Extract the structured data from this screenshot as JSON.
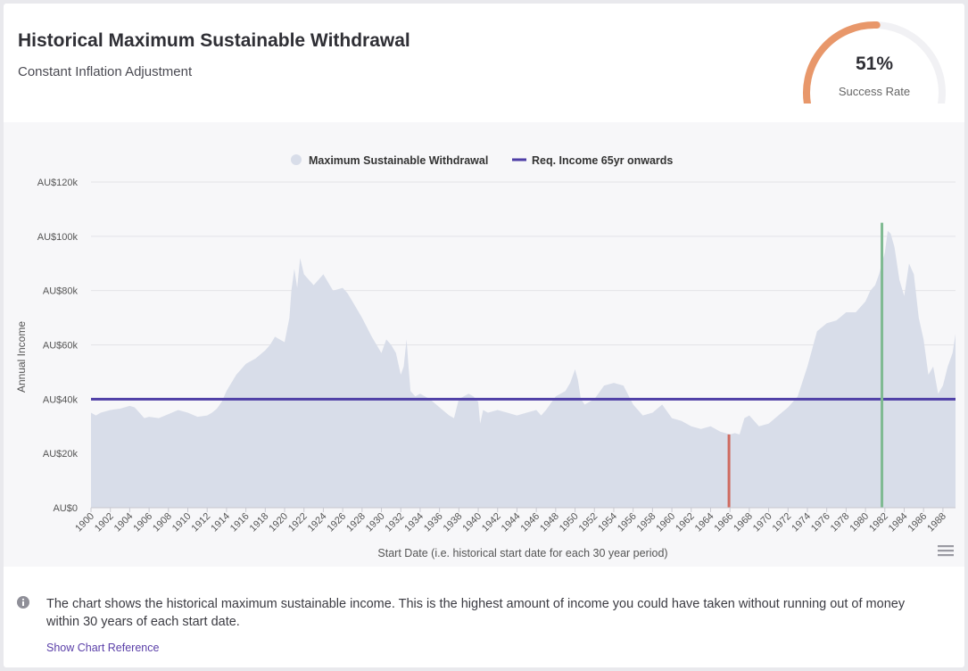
{
  "header": {
    "title": "Historical Maximum Sustainable Withdrawal",
    "subtitle": "Constant Inflation Adjustment"
  },
  "gauge": {
    "value_text": "51%",
    "label": "Success Rate",
    "fraction": 0.51,
    "color": "#e8976a",
    "track_color": "#f1f1f4"
  },
  "chart_data": {
    "type": "area",
    "legend": {
      "position": "top-center",
      "items": [
        "Maximum Sustainable Withdrawal",
        "Req. Income 65yr onwards"
      ]
    },
    "xlabel": "Start Date (i.e. historical start date for each 30 year period)",
    "ylabel": "Annual Income",
    "xlim": [
      1900,
      1989.3
    ],
    "ylim": [
      0,
      120000
    ],
    "y_ticks": [
      {
        "value": 0,
        "label": "AU$0"
      },
      {
        "value": 20000,
        "label": "AU$20k"
      },
      {
        "value": 40000,
        "label": "AU$40k"
      },
      {
        "value": 60000,
        "label": "AU$60k"
      },
      {
        "value": 80000,
        "label": "AU$80k"
      },
      {
        "value": 100000,
        "label": "AU$100k"
      },
      {
        "value": 120000,
        "label": "AU$120k"
      }
    ],
    "x_ticks": [
      "1900",
      "1902",
      "1904",
      "1906",
      "1908",
      "1910",
      "1912",
      "1914",
      "1916",
      "1918",
      "1920",
      "1922",
      "1924",
      "1926",
      "1928",
      "1930",
      "1932",
      "1934",
      "1936",
      "1938",
      "1940",
      "1942",
      "1944",
      "1946",
      "1948",
      "1950",
      "1952",
      "1954",
      "1956",
      "1958",
      "1960",
      "1962",
      "1964",
      "1966",
      "1968",
      "1970",
      "1972",
      "1974",
      "1976",
      "1978",
      "1980",
      "1982",
      "1984",
      "1986",
      "1988"
    ],
    "series": [
      {
        "name": "Maximum Sustainable Withdrawal",
        "color": "#d8dde9",
        "x": [
          1900,
          1900.5,
          1901,
          1902,
          1903,
          1904,
          1904.5,
          1905,
          1905.5,
          1906,
          1907,
          1908,
          1909,
          1910,
          1911,
          1912,
          1912.5,
          1913,
          1913.5,
          1914,
          1915,
          1916,
          1917,
          1918,
          1918.5,
          1919,
          1920,
          1920.5,
          1920.7,
          1921,
          1921.3,
          1921.6,
          1922,
          1922.5,
          1923,
          1923.5,
          1924,
          1925,
          1926,
          1926.5,
          1927,
          1928,
          1929,
          1930,
          1930.5,
          1931,
          1931.5,
          1932,
          1932.3,
          1932.6,
          1932.8,
          1933,
          1933.5,
          1934,
          1935,
          1936,
          1937,
          1937.5,
          1938,
          1939,
          1939.5,
          1940,
          1940.2,
          1940.5,
          1941,
          1942,
          1943,
          1944,
          1945,
          1946,
          1946.5,
          1947,
          1948,
          1949,
          1949.5,
          1950,
          1950.3,
          1950.6,
          1951,
          1952,
          1953,
          1954,
          1955,
          1956,
          1957,
          1958,
          1959,
          1960,
          1961,
          1962,
          1963,
          1964,
          1965,
          1966,
          1966.5,
          1967,
          1967.5,
          1968,
          1969,
          1970,
          1971,
          1972,
          1973,
          1974,
          1975,
          1976,
          1977,
          1978,
          1979,
          1980,
          1980.5,
          1981,
          1981.4,
          1981.7,
          1982,
          1982.3,
          1982.6,
          1983,
          1983.5,
          1984,
          1984.5,
          1985,
          1985.5,
          1986,
          1986.5,
          1987,
          1987.5,
          1988,
          1988.5,
          1989,
          1989.3
        ],
        "values": [
          35000,
          34000,
          35000,
          36000,
          36500,
          37500,
          37000,
          35000,
          33000,
          33500,
          33000,
          34500,
          36000,
          35000,
          33500,
          34000,
          35000,
          36500,
          39000,
          43000,
          49000,
          53000,
          55000,
          58000,
          60000,
          63000,
          61000,
          70000,
          80000,
          88000,
          81000,
          92000,
          86000,
          84000,
          82000,
          84000,
          86000,
          80000,
          81000,
          79000,
          76000,
          70000,
          63000,
          57000,
          62000,
          60000,
          57000,
          49000,
          52000,
          62000,
          52000,
          43000,
          41000,
          42000,
          40000,
          37000,
          34000,
          33000,
          40000,
          42000,
          41000,
          39000,
          31000,
          36000,
          35000,
          36000,
          35000,
          34000,
          35000,
          36000,
          34000,
          36000,
          41000,
          43000,
          46000,
          51000,
          47000,
          40000,
          38000,
          40000,
          45000,
          46000,
          45000,
          38000,
          34000,
          35000,
          38000,
          33000,
          32000,
          30000,
          29000,
          30000,
          28000,
          27000,
          27500,
          27000,
          33000,
          34000,
          30000,
          31000,
          34000,
          37000,
          41000,
          52000,
          65000,
          68000,
          69000,
          72000,
          72000,
          76000,
          80000,
          82000,
          86000,
          90000,
          94000,
          102000,
          101000,
          96000,
          84000,
          78000,
          90000,
          86000,
          70000,
          62000,
          49000,
          52000,
          42000,
          45000,
          52000,
          57000,
          64000
        ]
      },
      {
        "name": "Req. Income 65yr onwards",
        "color": "#4e3ea6",
        "value": 40000
      }
    ],
    "markers": [
      {
        "x": 1965.9,
        "value": 27000,
        "color": "#cf6a60"
      },
      {
        "x": 1981.7,
        "value": 105000,
        "color": "#7fba92"
      }
    ]
  },
  "footer": {
    "info_text": "The chart shows the historical maximum sustainable income. This is the highest amount of income you could have taken without running out of money within 30 years of each start date.",
    "show_reference": "Show Chart Reference"
  }
}
